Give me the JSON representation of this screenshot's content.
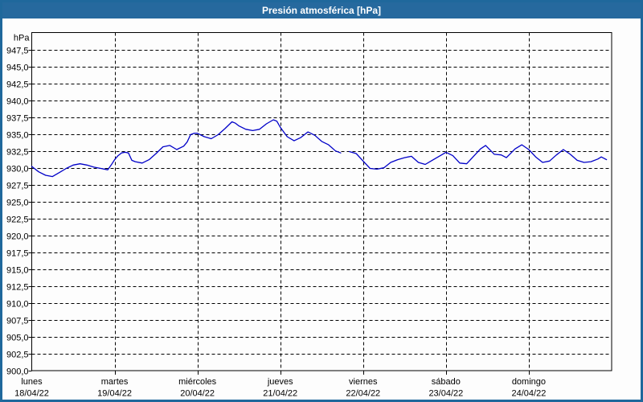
{
  "window": {
    "title": "Presión atmosférica [hPa]"
  },
  "colors": {
    "title_bar": "#26699e",
    "window_border": "#1f689c",
    "plot_background": "#fdfdfd",
    "frame": "#000000",
    "grid": "#000000",
    "text": "#000000",
    "line": "#0000c8"
  },
  "chart_data": {
    "type": "line",
    "title": "Presión atmosférica [hPa]",
    "y_unit_label": "hPa",
    "ylim": [
      900,
      950
    ],
    "ytick_step": 2.5,
    "grid": "dashed",
    "legend": "none",
    "x_total_hours": 168,
    "y_ticks": [
      {
        "v": 947.5,
        "label": "947,5"
      },
      {
        "v": 945.0,
        "label": "945,0"
      },
      {
        "v": 942.5,
        "label": "942,5"
      },
      {
        "v": 940.0,
        "label": "940,0"
      },
      {
        "v": 937.5,
        "label": "937,5"
      },
      {
        "v": 935.0,
        "label": "935,0"
      },
      {
        "v": 932.5,
        "label": "932,5"
      },
      {
        "v": 930.0,
        "label": "930,0"
      },
      {
        "v": 927.5,
        "label": "927,5"
      },
      {
        "v": 925.0,
        "label": "925,0"
      },
      {
        "v": 922.5,
        "label": "922,5"
      },
      {
        "v": 920.0,
        "label": "920,0"
      },
      {
        "v": 917.5,
        "label": "917,5"
      },
      {
        "v": 915.0,
        "label": "915,0"
      },
      {
        "v": 912.5,
        "label": "912,5"
      },
      {
        "v": 910.0,
        "label": "910,0"
      },
      {
        "v": 907.5,
        "label": "907,5"
      },
      {
        "v": 905.0,
        "label": "905,0"
      },
      {
        "v": 902.5,
        "label": "902,5"
      },
      {
        "v": 900.0,
        "label": "900,0"
      }
    ],
    "x_days": [
      {
        "name": "lunes",
        "date": "18/04/22",
        "start_hour": 0
      },
      {
        "name": "martes",
        "date": "19/04/22",
        "start_hour": 24
      },
      {
        "name": "miércoles",
        "date": "20/04/22",
        "start_hour": 48
      },
      {
        "name": "jueves",
        "date": "21/04/22",
        "start_hour": 72
      },
      {
        "name": "viernes",
        "date": "22/04/22",
        "start_hour": 96
      },
      {
        "name": "sábado",
        "date": "23/04/22",
        "start_hour": 120
      },
      {
        "name": "domingo",
        "date": "24/04/22",
        "start_hour": 144
      }
    ],
    "series": [
      {
        "name": "Presión atmosférica",
        "color": "#0000c8",
        "points": [
          [
            0,
            930.2
          ],
          [
            2,
            929.4
          ],
          [
            4,
            928.9
          ],
          [
            6,
            928.7
          ],
          [
            8,
            929.3
          ],
          [
            10,
            929.9
          ],
          [
            12,
            930.4
          ],
          [
            14,
            930.6
          ],
          [
            16,
            930.4
          ],
          [
            18,
            930.1
          ],
          [
            20,
            929.9
          ],
          [
            22,
            929.7
          ],
          [
            23,
            930.4
          ],
          [
            24,
            931.2
          ],
          [
            25,
            931.8
          ],
          [
            26,
            932.2
          ],
          [
            27,
            932.3
          ],
          [
            28,
            932.2
          ],
          [
            29,
            931.1
          ],
          [
            30,
            930.9
          ],
          [
            32,
            930.7
          ],
          [
            34,
            931.2
          ],
          [
            36,
            932.1
          ],
          [
            38,
            933.1
          ],
          [
            40,
            933.3
          ],
          [
            42,
            932.7
          ],
          [
            44,
            933.2
          ],
          [
            45,
            933.8
          ],
          [
            46,
            934.9
          ],
          [
            47,
            935.1
          ],
          [
            48,
            935.1
          ],
          [
            50,
            934.6
          ],
          [
            52,
            934.3
          ],
          [
            54,
            934.9
          ],
          [
            56,
            935.8
          ],
          [
            58,
            936.8
          ],
          [
            59,
            936.6
          ],
          [
            60,
            936.2
          ],
          [
            62,
            935.7
          ],
          [
            64,
            935.5
          ],
          [
            66,
            935.7
          ],
          [
            68,
            936.5
          ],
          [
            70,
            937.1
          ],
          [
            71,
            936.9
          ],
          [
            72,
            936.0
          ],
          [
            74,
            934.6
          ],
          [
            76,
            934.0
          ],
          [
            78,
            934.5
          ],
          [
            80,
            935.3
          ],
          [
            82,
            934.8
          ],
          [
            84,
            933.9
          ],
          [
            86,
            933.4
          ],
          [
            88,
            932.5
          ],
          [
            89.5,
            932.2
          ],
          [
            90.5,
            null
          ],
          [
            92,
            932.4
          ],
          [
            94,
            932.1
          ],
          [
            96,
            931.0
          ],
          [
            98,
            929.9
          ],
          [
            100,
            929.8
          ],
          [
            102,
            930.0
          ],
          [
            104,
            930.8
          ],
          [
            106,
            931.2
          ],
          [
            108,
            931.5
          ],
          [
            110,
            931.7
          ],
          [
            112,
            930.8
          ],
          [
            114,
            930.5
          ],
          [
            116,
            931.1
          ],
          [
            118,
            931.7
          ],
          [
            120,
            932.3
          ],
          [
            122,
            931.8
          ],
          [
            124,
            930.7
          ],
          [
            126,
            930.6
          ],
          [
            128,
            931.7
          ],
          [
            130,
            932.8
          ],
          [
            131.5,
            933.3
          ],
          [
            134,
            932.0
          ],
          [
            136,
            931.9
          ],
          [
            137.5,
            931.5
          ],
          [
            140,
            932.8
          ],
          [
            142,
            933.4
          ],
          [
            144,
            932.7
          ],
          [
            146,
            931.6
          ],
          [
            148,
            930.8
          ],
          [
            150,
            931.0
          ],
          [
            152,
            931.9
          ],
          [
            154,
            932.7
          ],
          [
            156,
            932.0
          ],
          [
            158,
            931.1
          ],
          [
            160,
            930.8
          ],
          [
            162,
            930.9
          ],
          [
            164,
            931.3
          ],
          [
            165,
            931.6
          ],
          [
            166.5,
            931.2
          ]
        ]
      }
    ]
  }
}
